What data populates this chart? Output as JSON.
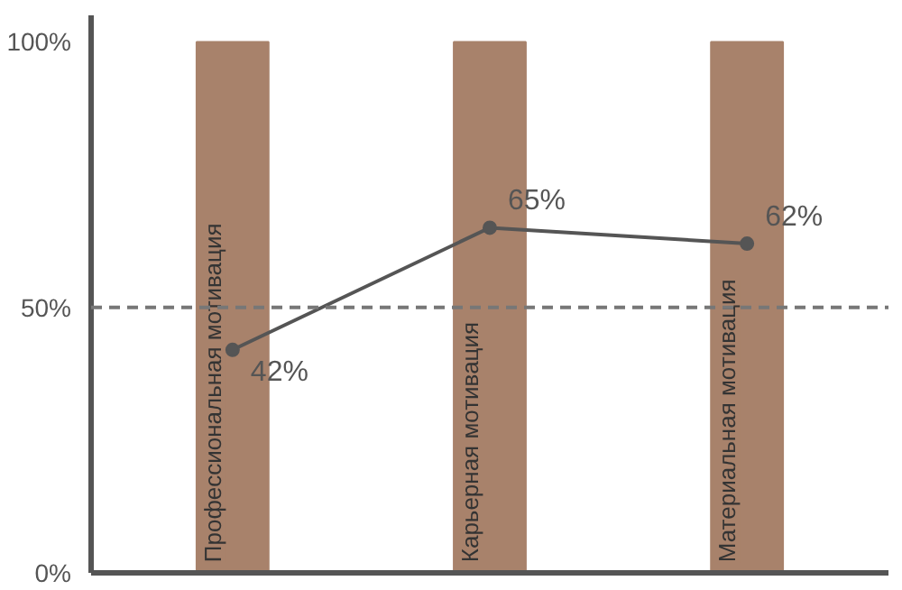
{
  "chart_data": {
    "type": "line",
    "categories": [
      "Профессиональная мотивация",
      "Карьерная мотивация",
      "Материальная мотивация"
    ],
    "series": [
      {
        "type": "bar",
        "color": "#a8826b",
        "values": [
          100,
          100,
          100
        ]
      },
      {
        "color": "#555555",
        "values": [
          42,
          65,
          62
        ],
        "value_labels": [
          "42%",
          "65%",
          "62%"
        ]
      }
    ],
    "ylim": [
      0,
      105
    ],
    "yticks": [
      {
        "value": 0,
        "label": "0%"
      },
      {
        "value": 50,
        "label": "50%"
      },
      {
        "value": 100,
        "label": "100%"
      }
    ],
    "tick_labels": "y",
    "grid": false,
    "marker": "circle",
    "line_style": "solid",
    "ref_lines": [
      {
        "axis": "y",
        "value": 50,
        "label": null,
        "color": "#777777",
        "line_style": "dashed"
      }
    ]
  }
}
